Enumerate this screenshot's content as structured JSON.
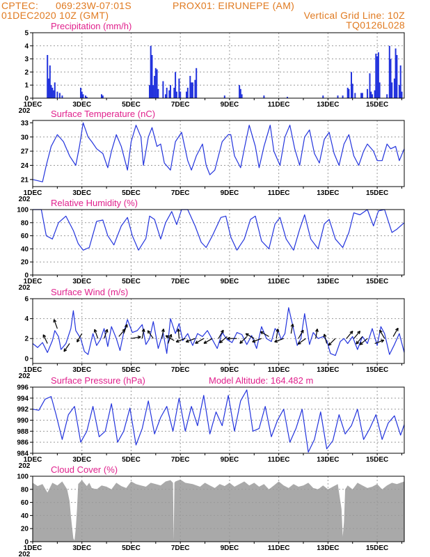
{
  "header": {
    "source": "CPTEC:",
    "coords": "069:23W-07:01S",
    "station": "PROX01: EIRUNEPE (AM)",
    "run": "01DEC2020 10Z (GMT)",
    "gridline": "Vertical Grid Line: 10Z",
    "model": "TQ0126L028"
  },
  "x_axis": {
    "labels": [
      "1DEC",
      "3DEC",
      "5DEC",
      "7DEC",
      "9DEC",
      "11DEC",
      "13DEC",
      "15DEC"
    ],
    "label_days": [
      1,
      3,
      5,
      7,
      9,
      11,
      13,
      15
    ],
    "year_fragment": "202",
    "xlim": [
      1,
      16.1
    ]
  },
  "colors": {
    "line": "#2233dd",
    "bar": "#2233dd",
    "cloud": "#a9a9a9",
    "title": "#e0208c",
    "header": "#e07a20"
  },
  "chart_data": [
    {
      "id": "precip",
      "type": "bar",
      "title": "Precipitation (mm/h)",
      "ylim": [
        0,
        5
      ],
      "yticks": [
        0,
        1,
        2,
        3,
        4,
        5
      ],
      "x": [
        1.6,
        1.65,
        1.7,
        1.75,
        1.8,
        1.85,
        1.9,
        2.0,
        2.1,
        2.2,
        2.95,
        3.0,
        3.05,
        3.15,
        3.2,
        3.8,
        3.85,
        5.75,
        5.8,
        5.85,
        5.9,
        5.95,
        6.0,
        6.05,
        6.1,
        6.3,
        6.4,
        6.45,
        6.55,
        6.6,
        6.75,
        6.8,
        6.85,
        6.95,
        7.0,
        7.25,
        7.3,
        7.4,
        7.45,
        7.5,
        7.6,
        7.65,
        8.8,
        9.4,
        9.45,
        9.5,
        10.4,
        11.35,
        12.8,
        13.4,
        13.6,
        13.8,
        13.85,
        13.95,
        14.0,
        14.1,
        14.35,
        14.4,
        14.6,
        14.7,
        14.75,
        14.8,
        14.9,
        14.95,
        15.0,
        15.05,
        15.1,
        15.4,
        15.5,
        15.55,
        15.6,
        15.7,
        15.75,
        15.8,
        15.9,
        15.95,
        16.0
      ],
      "values": [
        3.3,
        1.5,
        2.5,
        1.0,
        0.8,
        0.6,
        1.2,
        0.5,
        0.4,
        0.2,
        0.8,
        0.5,
        0.3,
        0.2,
        0.1,
        0.3,
        0.2,
        1.0,
        4.0,
        3.3,
        1.0,
        1.7,
        2.3,
        2.2,
        0.7,
        1.3,
        0.3,
        0.8,
        0.6,
        1.0,
        0.8,
        2.0,
        0.5,
        1.5,
        0.5,
        0.5,
        0.8,
        1.7,
        1.2,
        1.2,
        1.4,
        2.3,
        0.2,
        1.0,
        0.7,
        0.3,
        0.2,
        0.1,
        0.2,
        0.2,
        0.2,
        0.8,
        0.7,
        2.0,
        1.1,
        0.4,
        0.4,
        0.4,
        0.7,
        1.9,
        0.5,
        0.3,
        0.6,
        3.4,
        3.2,
        3.5,
        1.2,
        0.3,
        4.0,
        3.0,
        1.2,
        1.5,
        3.8,
        3.3,
        1.0,
        2.5,
        0.5
      ]
    },
    {
      "id": "temp",
      "type": "line",
      "title": "Surface Temperature (nC)",
      "ylim": [
        19.5,
        33.5
      ],
      "yticks": [
        21,
        24,
        27,
        30,
        33
      ],
      "x": [
        1.0,
        1.4,
        1.55,
        1.75,
        2.0,
        2.25,
        2.5,
        2.75,
        2.9,
        3.05,
        3.25,
        3.4,
        3.6,
        3.85,
        4.05,
        4.2,
        4.4,
        4.6,
        4.85,
        5.0,
        5.2,
        5.4,
        5.5,
        5.7,
        5.85,
        6.05,
        6.2,
        6.35,
        6.6,
        6.8,
        7.05,
        7.3,
        7.45,
        7.65,
        7.9,
        8.05,
        8.2,
        8.4,
        8.7,
        8.95,
        9.05,
        9.2,
        9.45,
        9.6,
        9.8,
        10.05,
        10.2,
        10.4,
        10.65,
        10.8,
        11.05,
        11.25,
        11.45,
        11.65,
        11.85,
        12.05,
        12.25,
        12.45,
        12.65,
        12.85,
        13.05,
        13.25,
        13.45,
        13.65,
        13.85,
        14.05,
        14.25,
        14.45,
        14.6,
        14.85,
        15.0,
        15.2,
        15.4,
        15.55,
        15.75,
        15.9,
        16.1
      ],
      "values": [
        21,
        20.5,
        24,
        28,
        30.5,
        29,
        26,
        24,
        28,
        33,
        30,
        29,
        27.5,
        26.5,
        23.5,
        27,
        30.5,
        28,
        23,
        29,
        32.5,
        30,
        24,
        30,
        32,
        28,
        28.5,
        24.5,
        23,
        29,
        31,
        25,
        23,
        26,
        28.5,
        24,
        22,
        23,
        29,
        30.5,
        30.5,
        26,
        23.5,
        27.5,
        32.5,
        28,
        23.5,
        28,
        32.5,
        27,
        24,
        30,
        32.5,
        27.5,
        24,
        30,
        31.5,
        26.5,
        24.5,
        29.5,
        31,
        26.5,
        24,
        28.5,
        30.5,
        26,
        24,
        27,
        28.5,
        27,
        25,
        25,
        28.5,
        27.5,
        28,
        25,
        27.5
      ]
    },
    {
      "id": "rh",
      "type": "line",
      "title": "Relative Humidity (%)",
      "ylim": [
        0,
        100
      ],
      "yticks": [
        0,
        20,
        40,
        60,
        80,
        100
      ],
      "x": [
        1.0,
        1.35,
        1.55,
        1.8,
        2.05,
        2.35,
        2.65,
        2.85,
        3.05,
        3.3,
        3.6,
        3.85,
        4.05,
        4.3,
        4.6,
        4.85,
        5.05,
        5.3,
        5.6,
        5.75,
        5.95,
        6.2,
        6.4,
        6.65,
        6.85,
        7.05,
        7.3,
        7.6,
        7.85,
        8.05,
        8.3,
        8.65,
        8.85,
        9.05,
        9.3,
        9.6,
        9.85,
        10.05,
        10.3,
        10.6,
        10.85,
        11.05,
        11.3,
        11.6,
        11.85,
        12.05,
        12.3,
        12.6,
        12.85,
        13.05,
        13.3,
        13.6,
        13.85,
        14.05,
        14.3,
        14.6,
        14.85,
        15.05,
        15.3,
        15.6,
        15.8,
        16.1
      ],
      "values": [
        100,
        100,
        60,
        55,
        80,
        90,
        68,
        48,
        38,
        42,
        82,
        84,
        60,
        46,
        75,
        88,
        60,
        38,
        56,
        90,
        85,
        55,
        80,
        97,
        77,
        100,
        100,
        75,
        50,
        42,
        60,
        88,
        90,
        58,
        38,
        55,
        85,
        90,
        52,
        40,
        78,
        88,
        55,
        38,
        70,
        92,
        55,
        40,
        78,
        85,
        55,
        42,
        65,
        95,
        92,
        100,
        75,
        98,
        100,
        65,
        70,
        80
      ]
    },
    {
      "id": "wind",
      "type": "line",
      "title": "Surface Wind (m/s)",
      "ylim": [
        -0.5,
        6
      ],
      "yticks": [
        0,
        2,
        4,
        6
      ],
      "x": [
        1.0,
        1.2,
        1.4,
        1.6,
        1.8,
        1.9,
        2.05,
        2.15,
        2.35,
        2.55,
        2.65,
        2.75,
        2.95,
        3.1,
        3.25,
        3.45,
        3.6,
        3.75,
        3.9,
        4.05,
        4.2,
        4.4,
        4.55,
        4.7,
        4.85,
        5.05,
        5.25,
        5.45,
        5.6,
        5.75,
        5.9,
        6.1,
        6.3,
        6.45,
        6.6,
        6.8,
        6.95,
        7.1,
        7.3,
        7.5,
        7.7,
        7.9,
        8.1,
        8.3,
        8.5,
        8.7,
        8.9,
        9.1,
        9.3,
        9.5,
        9.7,
        9.9,
        10.1,
        10.3,
        10.5,
        10.7,
        10.85,
        11.0,
        11.1,
        11.25,
        11.4,
        11.55,
        11.75,
        11.9,
        12.05,
        12.25,
        12.4,
        12.6,
        12.8,
        12.95,
        13.1,
        13.3,
        13.5,
        13.65,
        13.8,
        14.0,
        14.2,
        14.4,
        14.6,
        14.8,
        15.0,
        15.15,
        15.3,
        15.5,
        15.7,
        15.9,
        16.1
      ],
      "values": [
        1.5,
        1.1,
        1.6,
        0.6,
        1.8,
        2.8,
        2.2,
        0.9,
        1.5,
        3.0,
        4.8,
        2.8,
        2.0,
        0.7,
        0.4,
        2.5,
        1.3,
        1.9,
        3.0,
        1.2,
        3.2,
        2.0,
        0.8,
        2.6,
        3.9,
        2.6,
        2.8,
        3.4,
        1.4,
        2.0,
        3.7,
        1.0,
        2.6,
        0.5,
        4.0,
        2.5,
        3.5,
        1.8,
        2.5,
        1.3,
        2.5,
        2.2,
        2.8,
        1.9,
        1.0,
        2.6,
        1.9,
        1.6,
        2.6,
        2.4,
        1.4,
        2.3,
        1.0,
        3.2,
        2.0,
        1.7,
        3.0,
        2.6,
        1.9,
        2.5,
        5.1,
        3.5,
        1.3,
        2.0,
        4.5,
        1.4,
        2.6,
        2.0,
        2.2,
        1.8,
        0.5,
        0.3,
        1.7,
        2.0,
        1.5,
        2.2,
        0.9,
        2.2,
        1.5,
        3.0,
        1.3,
        3.2,
        2.5,
        0.4,
        1.4,
        2.5,
        0.6
      ]
    },
    {
      "id": "pressure",
      "type": "line",
      "title": "Surface Pressure (hPa)",
      "annotation": "Model Altitude: 164.482 m",
      "ylim": [
        984,
        996
      ],
      "yticks": [
        984,
        986,
        988,
        990,
        992,
        994,
        996
      ],
      "x": [
        1.0,
        1.25,
        1.5,
        1.75,
        1.95,
        2.2,
        2.45,
        2.7,
        2.95,
        3.2,
        3.45,
        3.7,
        3.95,
        4.2,
        4.45,
        4.7,
        4.95,
        5.2,
        5.45,
        5.7,
        5.95,
        6.2,
        6.45,
        6.7,
        6.95,
        7.2,
        7.45,
        7.7,
        7.95,
        8.2,
        8.45,
        8.7,
        8.95,
        9.2,
        9.45,
        9.7,
        9.95,
        10.2,
        10.45,
        10.7,
        10.95,
        11.2,
        11.45,
        11.7,
        11.95,
        12.2,
        12.45,
        12.7,
        12.95,
        13.2,
        13.45,
        13.7,
        13.95,
        14.2,
        14.45,
        14.7,
        14.95,
        15.2,
        15.45,
        15.7,
        15.95,
        16.1
      ],
      "values": [
        992,
        991.8,
        993.8,
        994.3,
        991,
        986.5,
        991,
        992.5,
        986,
        988,
        992.5,
        987,
        988,
        993,
        986,
        988,
        992.2,
        985.5,
        988.5,
        993.5,
        987.5,
        990.5,
        992.5,
        988,
        994,
        988,
        992.5,
        989,
        994.5,
        987.5,
        991.5,
        989,
        994.5,
        988,
        993.5,
        995.5,
        988,
        988.5,
        992.5,
        987,
        990,
        992,
        986,
        988.5,
        992,
        984.2,
        986.5,
        991.5,
        984.8,
        986.3,
        991,
        987.5,
        989,
        992,
        986.5,
        988.5,
        991,
        986.5,
        989.5,
        990.8,
        987.3,
        989.2
      ]
    },
    {
      "id": "cloud",
      "type": "area",
      "title": "Cloud Cover (%)",
      "ylim": [
        0,
        100
      ],
      "yticks": [
        0,
        20,
        40,
        60,
        80,
        100
      ],
      "x": [
        1.0,
        1.2,
        1.4,
        1.6,
        1.8,
        2.0,
        2.2,
        2.4,
        2.5,
        2.55,
        2.6,
        2.65,
        2.7,
        2.75,
        2.8,
        2.85,
        3.0,
        3.2,
        3.3,
        3.4,
        3.6,
        3.8,
        4.0,
        4.2,
        4.4,
        4.6,
        4.8,
        5.0,
        5.2,
        5.4,
        5.6,
        5.8,
        6.0,
        6.2,
        6.4,
        6.6,
        6.7,
        6.73,
        6.76,
        6.8,
        7.0,
        7.2,
        7.5,
        7.8,
        8.0,
        8.2,
        8.4,
        8.6,
        8.8,
        9.0,
        9.2,
        9.4,
        9.6,
        9.8,
        10.0,
        10.2,
        10.4,
        10.6,
        10.8,
        11.0,
        11.2,
        11.4,
        11.6,
        11.8,
        12.0,
        12.2,
        12.4,
        12.6,
        12.8,
        13.0,
        13.2,
        13.4,
        13.55,
        13.6,
        13.65,
        13.7,
        13.8,
        14.0,
        14.2,
        14.4,
        14.6,
        14.8,
        15.0,
        15.2,
        15.4,
        15.6,
        15.8,
        16.1
      ],
      "values": [
        90,
        85,
        88,
        75,
        90,
        86,
        92,
        80,
        62,
        40,
        22,
        5,
        2,
        20,
        50,
        88,
        94,
        85,
        90,
        82,
        80,
        86,
        84,
        80,
        90,
        85,
        82,
        92,
        88,
        86,
        84,
        90,
        88,
        86,
        92,
        94,
        90,
        2,
        90,
        92,
        95,
        90,
        88,
        84,
        90,
        86,
        82,
        88,
        85,
        90,
        84,
        88,
        92,
        86,
        90,
        84,
        88,
        80,
        86,
        92,
        86,
        82,
        88,
        84,
        86,
        90,
        82,
        80,
        86,
        80,
        84,
        88,
        50,
        8,
        30,
        80,
        86,
        80,
        90,
        86,
        82,
        84,
        88,
        80,
        86,
        90,
        88,
        92
      ]
    }
  ],
  "wind_arrows": [
    {
      "day": 1.6,
      "speed": 1.5,
      "dir_deg": 335
    },
    {
      "day": 2.0,
      "speed": 3.0,
      "dir_deg": 340
    },
    {
      "day": 2.5,
      "speed": 1.5,
      "dir_deg": 215
    },
    {
      "day": 3.0,
      "speed": 2.5,
      "dir_deg": 210
    },
    {
      "day": 3.65,
      "speed": 2.0,
      "dir_deg": 340
    },
    {
      "day": 3.9,
      "speed": 2.0,
      "dir_deg": 20
    },
    {
      "day": 4.5,
      "speed": 2.2,
      "dir_deg": 40
    },
    {
      "day": 4.7,
      "speed": 2.5,
      "dir_deg": 20
    },
    {
      "day": 5.0,
      "speed": 2.0,
      "dir_deg": 80
    },
    {
      "day": 5.45,
      "speed": 2.0,
      "dir_deg": 10
    },
    {
      "day": 5.9,
      "speed": 2.0,
      "dir_deg": 325
    },
    {
      "day": 6.25,
      "speed": 2.0,
      "dir_deg": 10
    },
    {
      "day": 6.5,
      "speed": 1.5,
      "dir_deg": 20
    },
    {
      "day": 6.75,
      "speed": 1.8,
      "dir_deg": 300
    },
    {
      "day": 6.95,
      "speed": 2.0,
      "dir_deg": 355
    },
    {
      "day": 7.2,
      "speed": 2.0,
      "dir_deg": 250
    },
    {
      "day": 7.6,
      "speed": 2.0,
      "dir_deg": 250
    },
    {
      "day": 7.95,
      "speed": 2.0,
      "dir_deg": 240
    },
    {
      "day": 8.3,
      "speed": 2.0,
      "dir_deg": 240
    },
    {
      "day": 8.55,
      "speed": 2.0,
      "dir_deg": 30
    },
    {
      "day": 8.9,
      "speed": 2.2,
      "dir_deg": 230
    },
    {
      "day": 9.3,
      "speed": 2.0,
      "dir_deg": 270
    },
    {
      "day": 9.7,
      "speed": 2.2,
      "dir_deg": 225
    },
    {
      "day": 10.0,
      "speed": 2.0,
      "dir_deg": 300
    },
    {
      "day": 10.3,
      "speed": 2.0,
      "dir_deg": 250
    },
    {
      "day": 10.6,
      "speed": 2.2,
      "dir_deg": 300
    },
    {
      "day": 10.9,
      "speed": 2.0,
      "dir_deg": 10
    },
    {
      "day": 11.2,
      "speed": 2.0,
      "dir_deg": 250
    },
    {
      "day": 11.5,
      "speed": 2.5,
      "dir_deg": 10
    },
    {
      "day": 11.8,
      "speed": 2.0,
      "dir_deg": 30
    },
    {
      "day": 12.1,
      "speed": 2.0,
      "dir_deg": 235
    },
    {
      "day": 12.5,
      "speed": 2.0,
      "dir_deg": 10
    },
    {
      "day": 12.95,
      "speed": 1.5,
      "dir_deg": 345
    },
    {
      "day": 13.3,
      "speed": 2.0,
      "dir_deg": 225
    },
    {
      "day": 13.75,
      "speed": 2.0,
      "dir_deg": 40
    },
    {
      "day": 14.05,
      "speed": 2.0,
      "dir_deg": 40
    },
    {
      "day": 14.4,
      "speed": 2.2,
      "dir_deg": 220
    },
    {
      "day": 14.6,
      "speed": 2.0,
      "dir_deg": 230
    },
    {
      "day": 14.9,
      "speed": 1.5,
      "dir_deg": 70
    },
    {
      "day": 15.3,
      "speed": 2.0,
      "dir_deg": 330
    },
    {
      "day": 15.65,
      "speed": 2.2,
      "dir_deg": 30
    }
  ]
}
